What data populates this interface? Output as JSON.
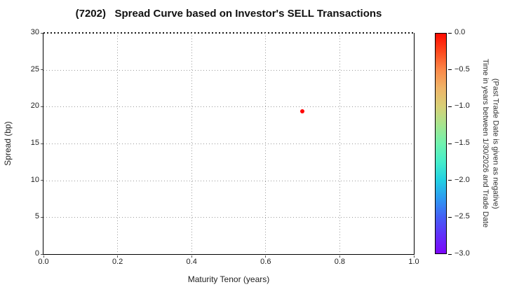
{
  "title": "(7202)   Spread Curve based on Investor's SELL Transactions",
  "chart_data": {
    "type": "scatter",
    "title": "(7202)   Spread Curve based on Investor's SELL Transactions",
    "xlabel": "Maturity Tenor (years)",
    "ylabel": "Spread (bp)",
    "xlim": [
      0.0,
      1.0
    ],
    "ylim": [
      0,
      30
    ],
    "grid": true,
    "xticks": [
      "0.0",
      "0.2",
      "0.4",
      "0.6",
      "0.8",
      "1.0"
    ],
    "yticks": [
      "0",
      "5",
      "10",
      "15",
      "20",
      "25",
      "30"
    ],
    "points": [
      {
        "x": 0.7,
        "y": 19.4,
        "colorbar_value": 0.0,
        "color": "#ff0000"
      }
    ],
    "colorbar": {
      "colormap": "rainbow",
      "value_top": 0.0,
      "value_bottom": -3.0,
      "ticks": [
        "0.0",
        "−0.5",
        "−1.0",
        "−1.5",
        "−2.0",
        "−2.5",
        "−3.0"
      ],
      "label_line1": "Time in years between 1/30/2026 and Trade Date",
      "label_line2": "(Past Trade Date is given as negative)",
      "gradient_colors": [
        "#ff0b00",
        "#fd4a1e",
        "#fb8a4a",
        "#eeb569",
        "#d7d077",
        "#a6e58f",
        "#70f2ae",
        "#46edca",
        "#22d0e2",
        "#2d9af1",
        "#4460f5",
        "#6130f9",
        "#7b06fb"
      ]
    }
  },
  "colors": {
    "background": "#ffffff",
    "axis": "#000000",
    "grid": "#9a9a9a",
    "text": "#1a1a1a",
    "point": "#ff0000"
  }
}
